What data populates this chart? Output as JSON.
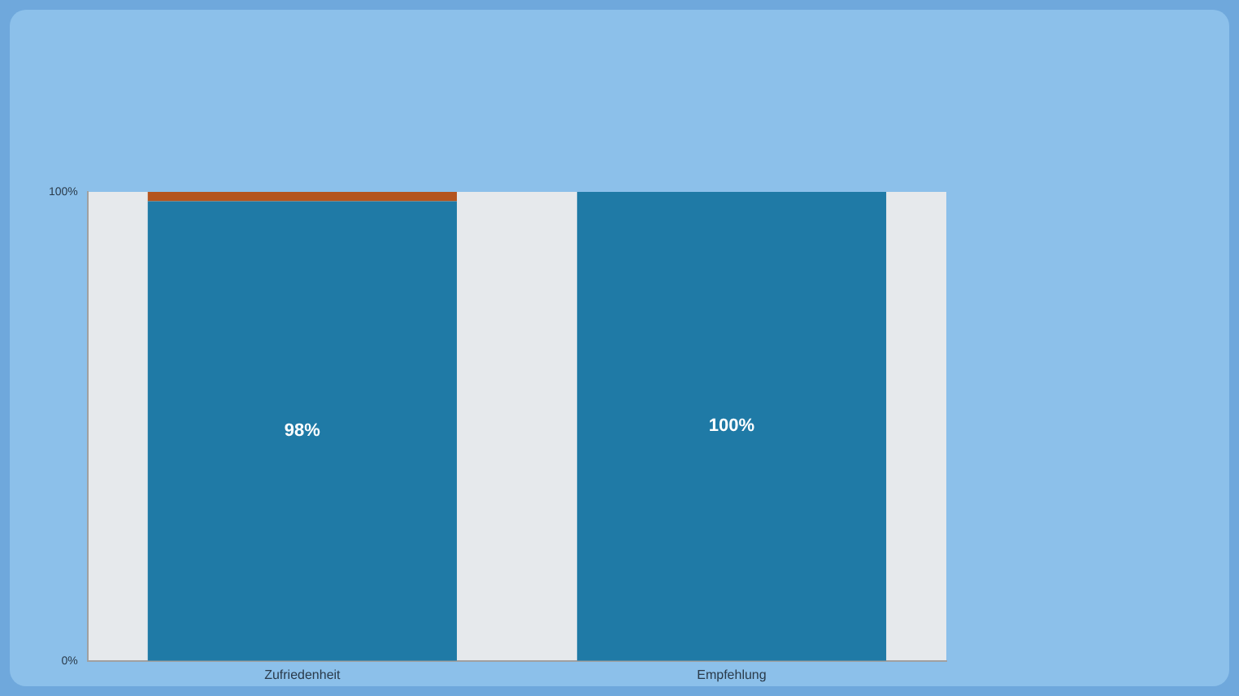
{
  "chart_data": {
    "type": "bar",
    "categories": [
      "Zufriedenheit",
      "Empfehlung"
    ],
    "stacked": true,
    "series": [
      {
        "color": "#1f7aa6",
        "values": [
          98,
          100
        ],
        "value_labels": [
          "98%",
          "100%"
        ]
      },
      {
        "color": "#b4541e",
        "values": [
          2,
          null
        ]
      }
    ],
    "ylim": [
      0,
      100
    ],
    "yticks": [
      {
        "value": 0,
        "label": "0%"
      },
      {
        "value": 100,
        "label": "100%"
      }
    ]
  }
}
